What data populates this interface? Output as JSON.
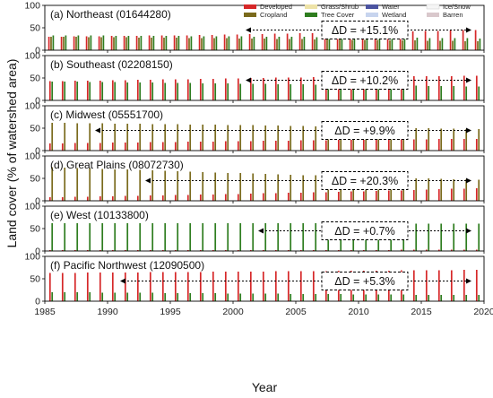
{
  "chart_data": {
    "type": "bar",
    "xlabel": "Year",
    "ylabel": "Land cover (% of watershed area)",
    "xlim": [
      1985,
      2020
    ],
    "x_ticks": [
      1985,
      1990,
      1995,
      2000,
      2005,
      2010,
      2015,
      2020
    ],
    "ylim": [
      0,
      100
    ],
    "y_ticks": [
      0,
      50,
      100
    ],
    "legend": [
      {
        "name": "Developed",
        "color": "#d62728"
      },
      {
        "name": "Cropland",
        "color": "#7a6a1c"
      },
      {
        "name": "Grass/Shrub",
        "color": "#eee3a8"
      },
      {
        "name": "Tree Cover",
        "color": "#2e7d1f"
      },
      {
        "name": "Water",
        "color": "#4b53a0"
      },
      {
        "name": "Wetland",
        "color": "#c7d4ee"
      },
      {
        "name": "Ice/Snow",
        "color": "#f5f5f5"
      },
      {
        "name": "Barren",
        "color": "#d9c8cc"
      }
    ],
    "panels": [
      {
        "title": "(a) Northeast (01644280)",
        "annotation": "ΔD = +15.1%",
        "arrow": [
          2001,
          2019
        ],
        "series": [
          {
            "name": "Developed",
            "values": [
              30,
              30,
              31,
              31,
              31,
              32,
              32,
              32,
              33,
              33,
              33,
              33,
              34,
              34,
              35,
              35,
              36,
              36,
              37,
              37,
              38,
              38,
              39,
              39,
              40,
              40,
              41,
              41,
              42,
              42,
              43,
              43,
              44,
              45,
              45
            ]
          },
          {
            "name": "Cropland",
            "values": [
              30,
              30,
              30,
              29,
              29,
              29,
              29,
              28,
              28,
              28,
              28,
              27,
              27,
              27,
              27,
              26,
              26,
              26,
              25,
              25,
              25,
              24,
              24,
              24,
              23,
              23,
              23,
              22,
              22,
              22,
              21,
              21,
              21,
              20,
              20
            ]
          },
          {
            "name": "Tree Cover",
            "values": [
              33,
              33,
              33,
              33,
              33,
              32,
              32,
              32,
              32,
              32,
              32,
              31,
              31,
              31,
              31,
              31,
              30,
              30,
              30,
              30,
              30,
              29,
              29,
              29,
              29,
              29,
              28,
              28,
              28,
              28,
              27,
              27,
              27,
              27,
              26
            ]
          }
        ]
      },
      {
        "title": "(b) Southeast (02208150)",
        "annotation": "ΔD = +10.2%",
        "arrow": [
          2001,
          2019
        ],
        "series": [
          {
            "name": "Developed",
            "values": [
              43,
              43,
              44,
              44,
              44,
              45,
              45,
              46,
              46,
              47,
              47,
              47,
              48,
              48,
              49,
              49,
              50,
              50,
              51,
              51,
              51,
              52,
              52,
              52,
              53,
              53,
              53,
              53,
              54,
              54,
              54,
              54,
              54,
              55,
              55
            ]
          },
          {
            "name": "Tree Cover",
            "values": [
              42,
              42,
              42,
              41,
              41,
              41,
              40,
              40,
              40,
              39,
              39,
              39,
              38,
              38,
              38,
              37,
              37,
              37,
              36,
              36,
              36,
              35,
              35,
              35,
              34,
              34,
              34,
              33,
              33,
              33,
              32,
              32,
              32,
              31,
              31
            ]
          }
        ]
      },
      {
        "title": "(c) Midwest (05551700)",
        "annotation": "ΔD = +9.9%",
        "arrow": [
          1989,
          2019
        ],
        "series": [
          {
            "name": "Developed",
            "values": [
              16,
              16,
              17,
              17,
              17,
              18,
              18,
              18,
              19,
              19,
              19,
              20,
              20,
              20,
              21,
              21,
              21,
              22,
              22,
              22,
              23,
              23,
              23,
              24,
              24,
              24,
              24,
              25,
              25,
              25,
              25,
              26,
              26,
              26,
              26
            ]
          },
          {
            "name": "Cropland",
            "values": [
              62,
              62,
              61,
              61,
              61,
              60,
              60,
              60,
              59,
              59,
              59,
              58,
              58,
              58,
              57,
              57,
              57,
              56,
              56,
              55,
              55,
              54,
              54,
              53,
              53,
              52,
              52,
              51,
              51,
              50,
              50,
              49,
              49,
              48,
              48
            ]
          }
        ]
      },
      {
        "title": "(d) Great Plains (08072730)",
        "annotation": "ΔD = +20.3%",
        "arrow": [
          1993,
          2019
        ],
        "series": [
          {
            "name": "Developed",
            "values": [
              8,
              8,
              9,
              9,
              10,
              10,
              11,
              11,
              12,
              12,
              13,
              13,
              14,
              14,
              15,
              15,
              16,
              17,
              17,
              18,
              18,
              19,
              19,
              20,
              21,
              21,
              22,
              23,
              23,
              24,
              25,
              26,
              27,
              27,
              28
            ]
          },
          {
            "name": "Cropland",
            "values": [
              75,
              74,
              73,
              72,
              71,
              70,
              70,
              69,
              68,
              67,
              66,
              65,
              64,
              63,
              62,
              62,
              61,
              60,
              59,
              58,
              57,
              57,
              56,
              55,
              54,
              53,
              53,
              52,
              51,
              50,
              50,
              49,
              48,
              48,
              47
            ]
          }
        ]
      },
      {
        "title": "(e) West (10133800)",
        "annotation": "ΔD = +0.7%",
        "arrow": [
          2002,
          2019
        ],
        "series": [
          {
            "name": "Developed",
            "values": [
              2,
              2,
              2,
              2,
              2,
              2,
              2,
              2,
              2,
              2,
              2,
              2,
              2,
              2,
              2,
              2,
              2,
              2,
              2,
              2,
              2,
              2,
              2,
              2,
              2,
              2,
              2,
              2,
              3,
              3,
              3,
              3,
              3,
              3,
              3
            ]
          },
          {
            "name": "Tree Cover",
            "values": [
              62,
              62,
              62,
              62,
              62,
              62,
              62,
              62,
              62,
              62,
              62,
              62,
              62,
              62,
              62,
              62,
              62,
              62,
              62,
              62,
              62,
              62,
              62,
              62,
              62,
              62,
              61,
              61,
              61,
              61,
              61,
              61,
              61,
              61,
              61
            ]
          }
        ]
      },
      {
        "title": "(f) Pacific Northwest (12090500)",
        "annotation": "ΔD = +5.3%",
        "arrow": [
          1991,
          2019
        ],
        "series": [
          {
            "name": "Developed",
            "values": [
              63,
              63,
              63,
              64,
              64,
              64,
              64,
              64,
              65,
              65,
              65,
              65,
              65,
              66,
              66,
              66,
              66,
              66,
              67,
              67,
              67,
              67,
              67,
              68,
              68,
              68,
              68,
              68,
              69,
              69,
              69,
              69,
              69,
              70,
              70
            ]
          },
          {
            "name": "Tree Cover",
            "values": [
              20,
              20,
              20,
              20,
              19,
              19,
              19,
              19,
              19,
              18,
              18,
              18,
              18,
              18,
              17,
              17,
              17,
              17,
              17,
              16,
              16,
              16,
              16,
              16,
              15,
              15,
              15,
              15,
              15,
              14,
              14,
              14,
              14,
              14,
              14
            ]
          }
        ]
      }
    ]
  }
}
